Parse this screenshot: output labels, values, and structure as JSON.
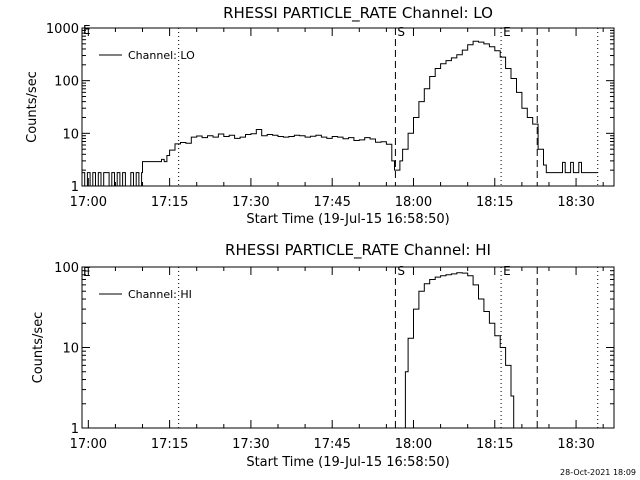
{
  "footer_timestamp": "28-Oct-2021 18:09",
  "chart_data": [
    {
      "type": "line",
      "title": "RHESSI PARTICLE_RATE Channel: LO",
      "xlabel": "Start Time (19-Jul-15 16:58:50)",
      "ylabel": "Counts/sec",
      "yscale": "log",
      "xlim": [
        "16:58:50",
        "18:37:00"
      ],
      "ylim": [
        1,
        1000
      ],
      "x_ticks": [
        "17:00",
        "17:15",
        "17:30",
        "17:45",
        "18:00",
        "18:15",
        "18:30"
      ],
      "y_ticks": [
        "1",
        "10",
        "100",
        "1000"
      ],
      "legend": {
        "position": "top-left",
        "label": "Channel: LO"
      },
      "corner_marker": "E",
      "markers": [
        {
          "time": "17:16:40",
          "style": "dotted",
          "label": ""
        },
        {
          "time": "17:56:40",
          "style": "dashed",
          "label": "S"
        },
        {
          "time": "18:16:10",
          "style": "dotted",
          "label": "E"
        },
        {
          "time": "18:22:50",
          "style": "dashed",
          "label": ""
        },
        {
          "time": "18:34:00",
          "style": "dotted",
          "label": ""
        }
      ],
      "series": [
        {
          "name": "Channel: LO",
          "x": [
            "16:58:50",
            "16:59:20",
            "16:59:50",
            "17:00:20",
            "17:00:50",
            "17:01:20",
            "17:01:50",
            "17:02:20",
            "17:02:50",
            "17:03:20",
            "17:03:50",
            "17:04:20",
            "17:04:50",
            "17:05:20",
            "17:05:50",
            "17:06:20",
            "17:06:50",
            "17:07:20",
            "17:07:50",
            "17:08:20",
            "17:08:50",
            "17:09:20",
            "17:09:50",
            "17:10:00",
            "17:12:30",
            "17:13:00",
            "17:13:30",
            "17:14:00",
            "17:14:30",
            "17:15:00",
            "17:16:00",
            "17:17:00",
            "17:18:00",
            "17:19:00",
            "17:20:00",
            "17:21:00",
            "17:22:00",
            "17:23:00",
            "17:24:00",
            "17:25:00",
            "17:26:00",
            "17:27:00",
            "17:28:00",
            "17:29:00",
            "17:30:00",
            "17:31:00",
            "17:32:00",
            "17:33:00",
            "17:34:00",
            "17:35:00",
            "17:36:00",
            "17:37:00",
            "17:38:00",
            "17:39:00",
            "17:40:00",
            "17:41:00",
            "17:42:00",
            "17:43:00",
            "17:44:00",
            "17:45:00",
            "17:46:00",
            "17:47:00",
            "17:48:00",
            "17:49:00",
            "17:50:00",
            "17:51:00",
            "17:52:00",
            "17:53:00",
            "17:54:00",
            "17:55:00",
            "17:56:00",
            "17:56:30",
            "17:57:00",
            "17:57:30",
            "17:58:00",
            "17:59:00",
            "18:00:00",
            "18:01:00",
            "18:02:00",
            "18:03:00",
            "18:04:00",
            "18:05:00",
            "18:06:00",
            "18:07:00",
            "18:08:00",
            "18:09:00",
            "18:10:00",
            "18:11:00",
            "18:12:00",
            "18:13:00",
            "18:14:00",
            "18:15:00",
            "18:16:00",
            "18:17:00",
            "18:18:00",
            "18:19:00",
            "18:20:00",
            "18:21:00",
            "18:22:00",
            "18:23:00",
            "18:24:00",
            "18:24:30",
            "18:26:00",
            "18:27:00",
            "18:27:30",
            "18:28:00",
            "18:28:30",
            "18:29:00",
            "18:29:30",
            "18:30:00",
            "18:30:30",
            "18:31:00",
            "18:31:30",
            "18:34:00"
          ],
          "y": [
            1.8,
            1,
            1.8,
            1,
            1.8,
            1,
            1.8,
            1,
            1.8,
            1.8,
            1,
            1.8,
            1,
            1.8,
            1,
            1.8,
            1,
            1,
            1.8,
            1,
            1.8,
            1,
            1.8,
            2.9,
            2.9,
            2.9,
            3.2,
            2.9,
            3.8,
            4.8,
            6.3,
            6.7,
            6.5,
            8.5,
            8.9,
            8.3,
            9.0,
            8.5,
            9.7,
            8.7,
            9.2,
            8.0,
            8.5,
            9.5,
            9.8,
            11.8,
            9.0,
            9.5,
            9.2,
            8.7,
            8.5,
            8.7,
            9.2,
            9.0,
            8.5,
            8.8,
            9.2,
            8.5,
            8.0,
            8.7,
            8.5,
            7.9,
            8.3,
            7.3,
            7.5,
            8.3,
            7.8,
            6.8,
            6.9,
            6.2,
            3.0,
            2.0,
            2.0,
            3.0,
            5.0,
            10,
            20,
            40,
            70,
            120,
            170,
            210,
            240,
            270,
            310,
            380,
            480,
            560,
            540,
            500,
            440,
            370,
            280,
            170,
            110,
            60,
            30,
            20,
            15,
            5,
            2.5,
            1.8,
            1.8,
            1.8,
            2.8,
            1.8,
            1.8,
            2.8,
            1.8,
            1.8,
            2.8,
            1.8,
            1.8,
            1.8
          ]
        }
      ]
    },
    {
      "type": "line",
      "title": "RHESSI PARTICLE_RATE Channel: HI",
      "xlabel": "Start Time (19-Jul-15 16:58:50)",
      "ylabel": "Counts/sec",
      "yscale": "log",
      "xlim": [
        "16:58:50",
        "18:37:00"
      ],
      "ylim": [
        1,
        100
      ],
      "x_ticks": [
        "17:00",
        "17:15",
        "17:30",
        "17:45",
        "18:00",
        "18:15",
        "18:30"
      ],
      "y_ticks": [
        "1",
        "10",
        "100"
      ],
      "legend": {
        "position": "top-left",
        "label": "Channel: HI"
      },
      "corner_marker": "E",
      "markers": [
        {
          "time": "17:16:40",
          "style": "dotted",
          "label": ""
        },
        {
          "time": "17:56:40",
          "style": "dashed",
          "label": "S"
        },
        {
          "time": "18:16:10",
          "style": "dotted",
          "label": "E"
        },
        {
          "time": "18:22:50",
          "style": "dashed",
          "label": ""
        },
        {
          "time": "18:34:00",
          "style": "dotted",
          "label": ""
        }
      ],
      "series": [
        {
          "name": "Channel: HI",
          "x": [
            "17:58:00",
            "17:58:30",
            "17:59:00",
            "18:00:00",
            "18:01:00",
            "18:02:00",
            "18:03:00",
            "18:04:00",
            "18:05:00",
            "18:06:00",
            "18:07:00",
            "18:08:00",
            "18:09:00",
            "18:10:00",
            "18:11:00",
            "18:12:00",
            "18:13:00",
            "18:14:00",
            "18:15:00",
            "18:16:00",
            "18:17:00",
            "18:18:00",
            "18:18:30"
          ],
          "y": [
            1,
            5,
            13,
            30,
            50,
            62,
            70,
            75,
            78,
            80,
            82,
            85,
            84,
            78,
            60,
            40,
            28,
            20,
            14,
            10,
            6,
            2.5,
            1
          ]
        }
      ]
    }
  ]
}
